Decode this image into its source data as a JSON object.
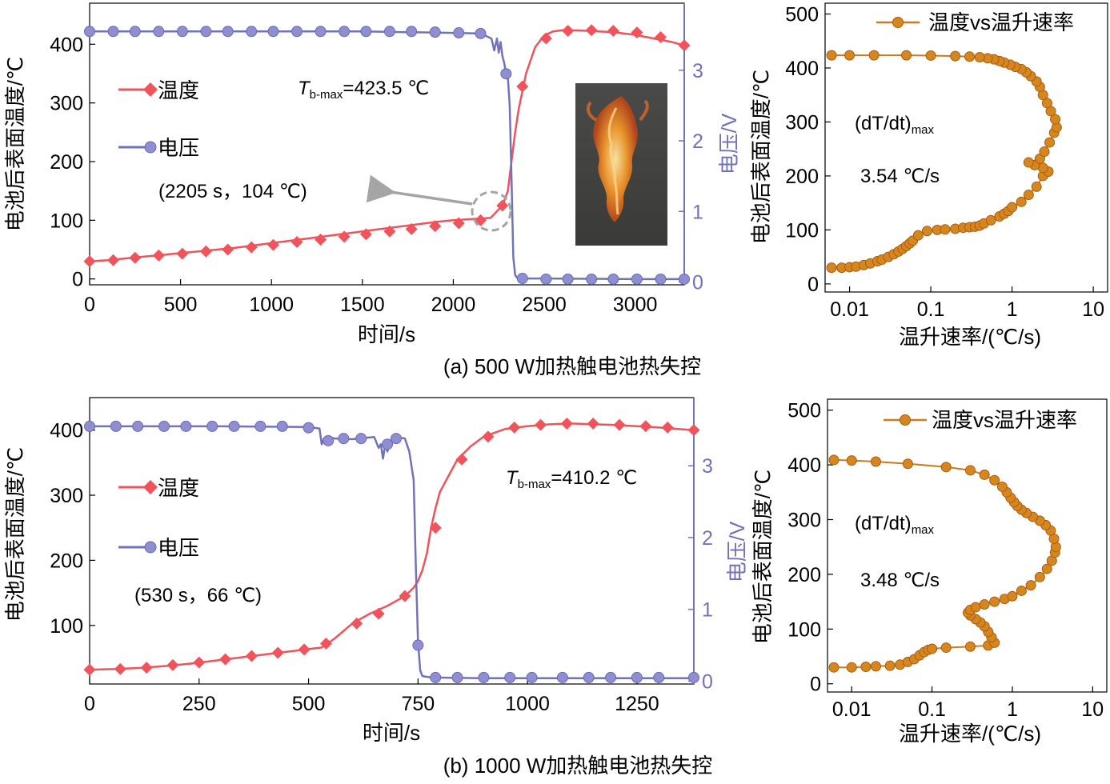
{
  "chart_data": [
    {
      "id": "a_time",
      "type": "line",
      "caption": "(a) 500 W加热触电池热失控",
      "xlabel": "时间/s",
      "ylabel": "电池后表面温度/℃",
      "y2label": "电压/V",
      "xlim": [
        0,
        3270
      ],
      "ylim": [
        -10,
        470
      ],
      "y2lim": [
        -0.04,
        3.95
      ],
      "xticks": [
        0,
        500,
        1000,
        1500,
        2000,
        2500,
        3000
      ],
      "yticks": [
        0,
        100,
        200,
        300,
        400
      ],
      "y2ticks": [
        0,
        1,
        2,
        3
      ],
      "colors": {
        "temperature": "#f0535b",
        "voltage": "#7272b9",
        "axis2": "#7272b9",
        "arrow": "#a5a5a5"
      },
      "series": [
        {
          "name": "温度",
          "axis": "left",
          "marker": "diamond",
          "x": [
            0,
            100,
            200,
            300,
            400,
            500,
            600,
            700,
            800,
            900,
            1000,
            1100,
            1200,
            1300,
            1400,
            1500,
            1600,
            1700,
            1800,
            1900,
            2000,
            2100,
            2205,
            2270,
            2300,
            2320,
            2340,
            2360,
            2380,
            2400,
            2450,
            2500,
            2550,
            2600,
            2700,
            2800,
            2900,
            3000,
            3100,
            3200,
            3270
          ],
          "y": [
            30,
            32,
            35,
            38,
            41,
            44,
            47,
            50,
            53,
            57,
            61,
            65,
            69,
            73,
            77,
            81,
            85,
            89,
            93,
            97,
            100,
            102,
            104,
            125,
            150,
            200,
            250,
            290,
            320,
            350,
            395,
            415,
            422,
            424,
            423.5,
            422,
            420,
            416,
            410,
            404,
            398
          ],
          "markers_x": [
            0,
            130,
            250,
            380,
            510,
            640,
            760,
            890,
            1010,
            1140,
            1270,
            1400,
            1520,
            1650,
            1770,
            1900,
            2030,
            2150,
            2270,
            2380,
            2510,
            2630,
            2760,
            2880,
            3010,
            3140,
            3270
          ],
          "markers_y": [
            30,
            32,
            36,
            40,
            43,
            47,
            50,
            54,
            58,
            63,
            67,
            72,
            76,
            81,
            85,
            90,
            95,
            100,
            125,
            328,
            410,
            423,
            424,
            423,
            420,
            412,
            398
          ]
        },
        {
          "name": "电压",
          "axis": "right",
          "marker": "circle",
          "x": [
            0,
            500,
            1000,
            1500,
            2000,
            2150,
            2210,
            2225,
            2240,
            2250,
            2260,
            2270,
            2280,
            2290,
            2300,
            2310,
            2320,
            2330,
            2340,
            2350,
            2370,
            2400,
            2500,
            3000,
            3270
          ],
          "y": [
            3.55,
            3.55,
            3.55,
            3.55,
            3.53,
            3.52,
            3.45,
            3.28,
            3.45,
            3.25,
            3.4,
            3.2,
            3.1,
            2.95,
            2.9,
            2.5,
            1.5,
            0.35,
            0.1,
            0.06,
            0.05,
            0.05,
            0.05,
            0.04,
            0.04
          ],
          "markers_x": [
            0,
            130,
            250,
            380,
            510,
            640,
            760,
            890,
            1010,
            1140,
            1270,
            1400,
            1520,
            1650,
            1770,
            1900,
            2030,
            2150,
            2290,
            2380,
            2510,
            2630,
            2760,
            2880,
            3010,
            3140,
            3270
          ],
          "markers_y": [
            3.55,
            3.55,
            3.55,
            3.55,
            3.55,
            3.55,
            3.55,
            3.55,
            3.55,
            3.55,
            3.55,
            3.55,
            3.55,
            3.55,
            3.55,
            3.54,
            3.53,
            3.52,
            2.95,
            0.05,
            0.04,
            0.04,
            0.04,
            0.04,
            0.04,
            0.04,
            0.04
          ]
        }
      ],
      "annotations": {
        "tmax_T": "T",
        "tmax_sub": "b-max",
        "tmax_value": "=423.5 ℃",
        "point_label": "(2205 s，104 ℃)",
        "point_x": 2205,
        "point_y": 104
      },
      "has_inset_photo": true
    },
    {
      "id": "a_rate",
      "type": "scatter",
      "xscale": "log",
      "xlabel": "温升速率/(℃/s)",
      "ylabel": "电池后表面温度/℃",
      "xlim": [
        0.005,
        15
      ],
      "ylim": [
        -15,
        520
      ],
      "xticks": [
        0.01,
        0.1,
        1,
        10
      ],
      "xticklabels": [
        "0.01",
        "0.1",
        "1",
        "10"
      ],
      "yticks": [
        0,
        100,
        200,
        300,
        400,
        500
      ],
      "color": "#cc7a1b",
      "legend": "温度vs温升速率",
      "annotation_rate_label": "(dT/dt)",
      "annotation_rate_sub": "max",
      "annotation_rate_value": "3.54 ℃/s",
      "rate_max": 3.54,
      "series": [
        {
          "name": "温度vs温升速率",
          "x": [
            0.006,
            0.008,
            0.01,
            0.012,
            0.015,
            0.018,
            0.022,
            0.025,
            0.03,
            0.035,
            0.04,
            0.045,
            0.05,
            0.055,
            0.06,
            0.07,
            0.09,
            0.12,
            0.15,
            0.2,
            0.25,
            0.3,
            0.35,
            0.4,
            0.45,
            0.55,
            0.7,
            0.8,
            0.9,
            1.0,
            1.3,
            1.6,
            2.0,
            2.4,
            2.8,
            2.4,
            1.9,
            1.6,
            2.2,
            2.5,
            2.9,
            3.3,
            3.54,
            3.4,
            3.0,
            2.7,
            2.4,
            2.2,
            2.0,
            1.7,
            1.5,
            1.3,
            1.1,
            0.95,
            0.8,
            0.7,
            0.6,
            0.5,
            0.4,
            0.3,
            0.2,
            0.1,
            0.05,
            0.02,
            0.01,
            0.006
          ],
          "y": [
            30,
            30,
            31,
            32,
            35,
            38,
            42,
            45,
            50,
            55,
            60,
            65,
            70,
            75,
            80,
            90,
            98,
            100,
            101,
            102,
            104,
            105,
            106,
            108,
            112,
            118,
            125,
            130,
            135,
            142,
            152,
            165,
            180,
            200,
            208,
            215,
            220,
            225,
            232,
            245,
            262,
            280,
            290,
            305,
            320,
            335,
            350,
            365,
            375,
            385,
            392,
            398,
            402,
            406,
            410,
            413,
            416,
            418,
            420,
            421,
            422,
            423,
            423.5,
            423.5,
            423.5,
            423.5
          ]
        }
      ]
    },
    {
      "id": "b_time",
      "type": "line",
      "caption": "(b) 1000 W加热触电池热失控",
      "xlabel": "时间/s",
      "ylabel": "电池后表面温度/℃",
      "y2label": "电压/V",
      "xlim": [
        0,
        1380
      ],
      "ylim": [
        10,
        450
      ],
      "y2lim": [
        -0.04,
        3.95
      ],
      "xticks": [
        0,
        250,
        500,
        750,
        1000,
        1250
      ],
      "yticks": [
        100,
        200,
        300,
        400
      ],
      "y2ticks": [
        0,
        1,
        2,
        3
      ],
      "colors": {
        "temperature": "#f0535b",
        "voltage": "#7272b9",
        "axis2": "#7272b9"
      },
      "series": [
        {
          "name": "温度",
          "axis": "left",
          "marker": "diamond",
          "x": [
            0,
            60,
            120,
            180,
            240,
            300,
            360,
            420,
            480,
            530,
            560,
            600,
            640,
            680,
            720,
            740,
            750,
            760,
            770,
            780,
            790,
            800,
            820,
            840,
            870,
            900,
            950,
            1000,
            1050,
            1100,
            1150,
            1200,
            1250,
            1300,
            1380
          ],
          "y": [
            32,
            33,
            35,
            38,
            42,
            47,
            52,
            57,
            62,
            66,
            80,
            103,
            118,
            130,
            145,
            158,
            168,
            185,
            210,
            250,
            280,
            305,
            330,
            355,
            375,
            390,
            402,
            406,
            409,
            410.2,
            409,
            408,
            406,
            404,
            400
          ],
          "markers_x": [
            0,
            70,
            130,
            190,
            250,
            310,
            370,
            430,
            490,
            540,
            610,
            660,
            720,
            790,
            850,
            910,
            970,
            1030,
            1090,
            1150,
            1210,
            1270,
            1320,
            1380
          ],
          "markers_y": [
            32,
            33,
            35,
            39,
            43,
            48,
            53,
            58,
            63,
            72,
            103,
            118,
            145,
            250,
            355,
            390,
            404,
            408,
            410,
            410,
            408,
            406,
            404,
            400
          ]
        },
        {
          "name": "电压",
          "axis": "right",
          "marker": "circle",
          "x": [
            0,
            300,
            500,
            525,
            530,
            535,
            545,
            560,
            600,
            650,
            660,
            665,
            670,
            675,
            680,
            690,
            700,
            720,
            730,
            740,
            745,
            750,
            755,
            760,
            780,
            900,
            1380
          ],
          "y": [
            3.55,
            3.55,
            3.54,
            3.52,
            3.3,
            3.38,
            3.4,
            3.38,
            3.37,
            3.4,
            3.25,
            3.3,
            3.1,
            3.3,
            3.2,
            3.38,
            3.4,
            3.38,
            3.2,
            2.8,
            1.6,
            0.55,
            0.15,
            0.07,
            0.05,
            0.04,
            0.04
          ],
          "markers_x": [
            0,
            60,
            110,
            170,
            220,
            280,
            330,
            390,
            440,
            500,
            545,
            580,
            620,
            680,
            700,
            750,
            790,
            840,
            900,
            960,
            1010,
            1080,
            1140,
            1190,
            1250,
            1300,
            1380
          ],
          "markers_y": [
            3.55,
            3.55,
            3.55,
            3.55,
            3.55,
            3.55,
            3.55,
            3.55,
            3.55,
            3.53,
            3.35,
            3.38,
            3.38,
            3.3,
            3.38,
            0.5,
            0.05,
            0.05,
            0.05,
            0.05,
            0.05,
            0.05,
            0.05,
            0.05,
            0.05,
            0.05,
            0.05
          ]
        }
      ],
      "annotations": {
        "tmax_T": "T",
        "tmax_sub": "b-max",
        "tmax_value": "=410.2 ℃",
        "point_label": "(530 s，66 ℃)"
      }
    },
    {
      "id": "b_rate",
      "type": "scatter",
      "xscale": "log",
      "xlabel": "温升速率/(℃/s)",
      "ylabel": "电池后表面温度/℃",
      "xlim": [
        0.005,
        15
      ],
      "ylim": [
        -15,
        520
      ],
      "xticks": [
        0.01,
        0.1,
        1,
        10
      ],
      "xticklabels": [
        "0.01",
        "0.1",
        "1",
        "10"
      ],
      "yticks": [
        0,
        100,
        200,
        300,
        400,
        500
      ],
      "color": "#cc7a1b",
      "legend": "温度vs温升速率",
      "annotation_rate_label": "(dT/dt)",
      "annotation_rate_sub": "max",
      "annotation_rate_value": "3.48 ℃/s",
      "rate_max": 3.48,
      "series": [
        {
          "name": "温度vs温升速率",
          "x": [
            0.006,
            0.01,
            0.015,
            0.02,
            0.03,
            0.04,
            0.05,
            0.06,
            0.07,
            0.08,
            0.09,
            0.1,
            0.15,
            0.3,
            0.5,
            0.6,
            0.55,
            0.5,
            0.45,
            0.4,
            0.35,
            0.3,
            0.28,
            0.3,
            0.35,
            0.45,
            0.6,
            0.8,
            1.0,
            1.3,
            1.7,
            2.2,
            2.7,
            3.1,
            3.4,
            3.48,
            3.3,
            3.0,
            2.6,
            2.2,
            1.8,
            1.5,
            1.3,
            1.15,
            1.05,
            0.95,
            0.85,
            0.75,
            0.6,
            0.45,
            0.3,
            0.15,
            0.05,
            0.02,
            0.01,
            0.006
          ],
          "y": [
            30,
            30,
            31,
            32,
            33,
            35,
            40,
            45,
            52,
            58,
            62,
            64,
            66,
            68,
            70,
            75,
            85,
            95,
            105,
            112,
            118,
            125,
            130,
            135,
            140,
            145,
            150,
            155,
            160,
            170,
            180,
            195,
            210,
            225,
            240,
            250,
            265,
            280,
            290,
            298,
            305,
            312,
            318,
            325,
            332,
            340,
            350,
            360,
            372,
            382,
            390,
            396,
            402,
            406,
            408,
            409
          ]
        }
      ]
    }
  ]
}
